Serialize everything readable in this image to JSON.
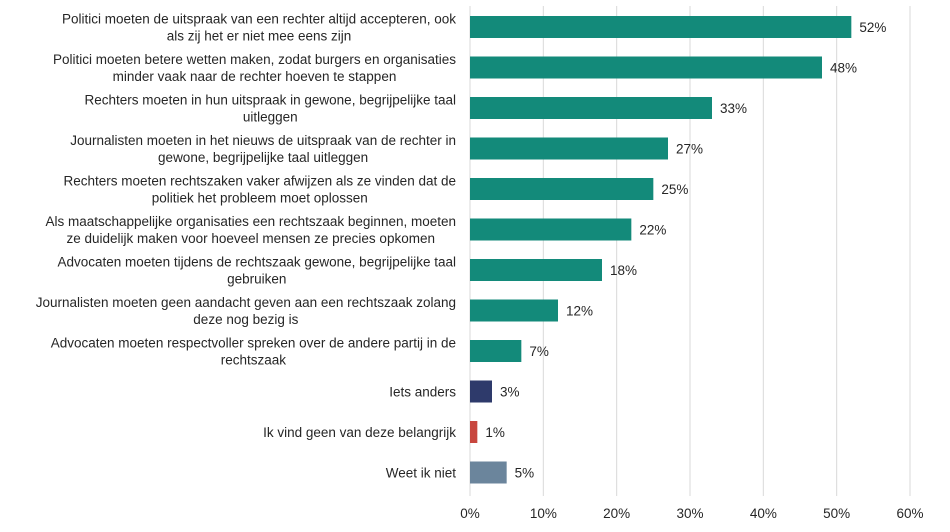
{
  "chart_data": {
    "type": "bar",
    "orientation": "horizontal",
    "categories": [
      [
        "Politici moeten de uitspraak van een rechter altijd accepteren, ook",
        "als zij het er niet mee eens zijn"
      ],
      [
        "Politici moeten betere wetten maken, zodat burgers en organisaties",
        "minder vaak naar de rechter hoeven te stappen"
      ],
      [
        "Rechters moeten in hun uitspraak in gewone, begrijpelijke taal",
        "uitleggen"
      ],
      [
        "Journalisten moeten in het nieuws de uitspraak van de rechter in",
        "gewone, begrijpelijke taal uitleggen"
      ],
      [
        "Rechters moeten rechtszaken vaker afwijzen als ze vinden dat de",
        "politiek het probleem moet oplossen"
      ],
      [
        "Als maatschappelijke organisaties een rechtszaak beginnen, moeten",
        "ze duidelijk maken voor hoeveel mensen ze precies opkomen"
      ],
      [
        "Advocaten moeten tijdens de rechtszaak gewone, begrijpelijke taal",
        "gebruiken"
      ],
      [
        "Journalisten moeten geen aandacht geven aan een rechtszaak zolang",
        "deze nog bezig is"
      ],
      [
        "Advocaten moeten respectvoller spreken over de andere partij in de",
        "rechtszaak"
      ],
      [
        "Iets anders"
      ],
      [
        "Ik vind geen van deze belangrijk"
      ],
      [
        "Weet ik niet"
      ]
    ],
    "values": [
      52,
      48,
      33,
      27,
      25,
      22,
      18,
      12,
      7,
      3,
      1,
      5
    ],
    "data_labels": [
      "52%",
      "48%",
      "33%",
      "27%",
      "25%",
      "22%",
      "18%",
      "12%",
      "7%",
      "3%",
      "1%",
      "5%"
    ],
    "bar_colors": [
      "#138a7a",
      "#138a7a",
      "#138a7a",
      "#138a7a",
      "#138a7a",
      "#138a7a",
      "#138a7a",
      "#138a7a",
      "#138a7a",
      "#2e3a6b",
      "#c8463e",
      "#6b859c"
    ],
    "xlim": [
      0,
      60
    ],
    "xticks": [
      0,
      10,
      20,
      30,
      40,
      50,
      60
    ],
    "xtick_labels": [
      "0%",
      "10%",
      "20%",
      "30%",
      "40%",
      "50%",
      "60%"
    ],
    "grid": "vertical",
    "legend": "none",
    "title": "",
    "xlabel": "",
    "ylabel": ""
  }
}
